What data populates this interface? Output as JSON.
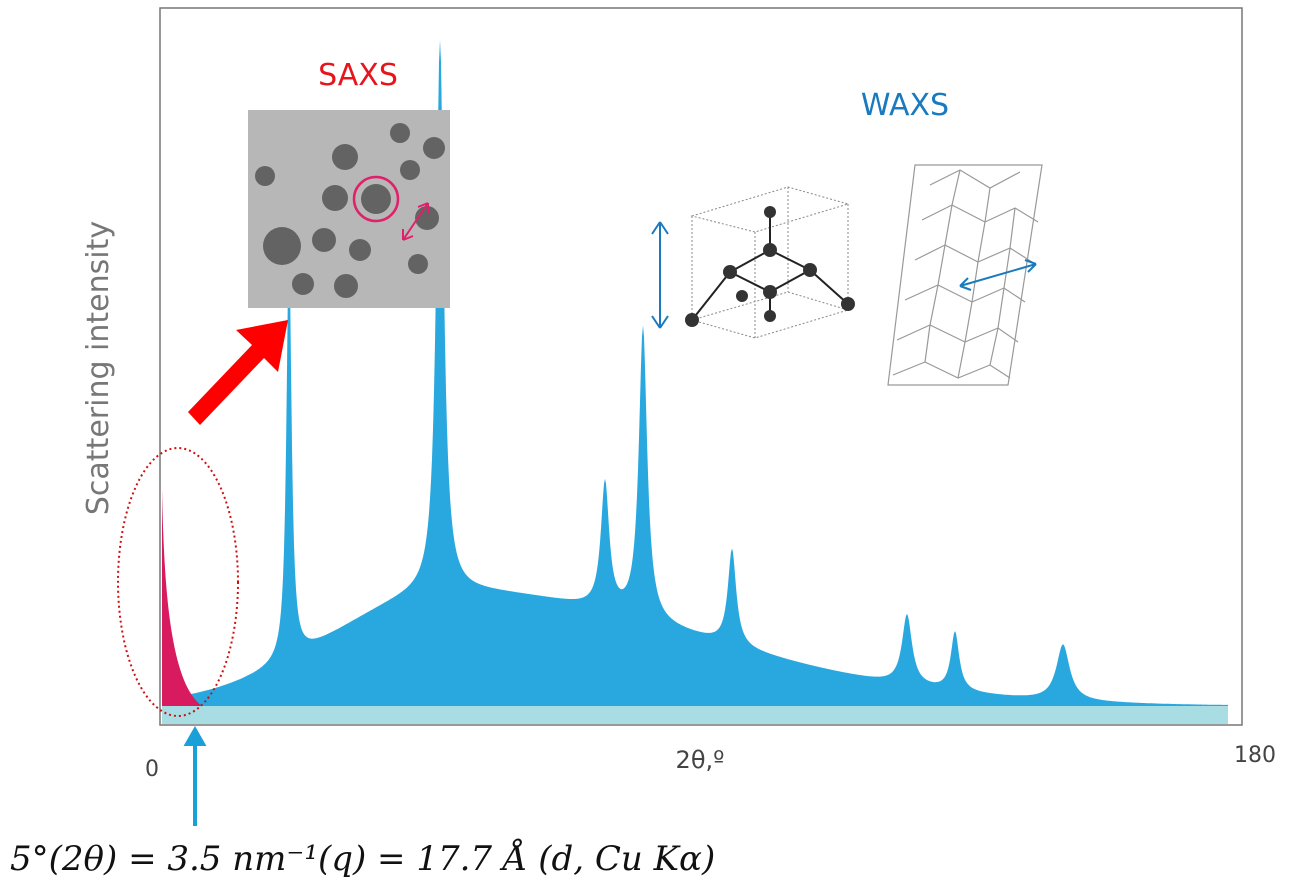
{
  "y_axis_label": "Scattering intensity",
  "x_axis_label": "2θ,º",
  "x_tick_start": 0,
  "x_tick_end": 180,
  "saxs_label": "SAXS",
  "waxs_label": "WAXS",
  "formula": "5°(2θ) = 3.5 nm⁻¹(q) = 17.7 Å (d, Cu Kα)"
}
